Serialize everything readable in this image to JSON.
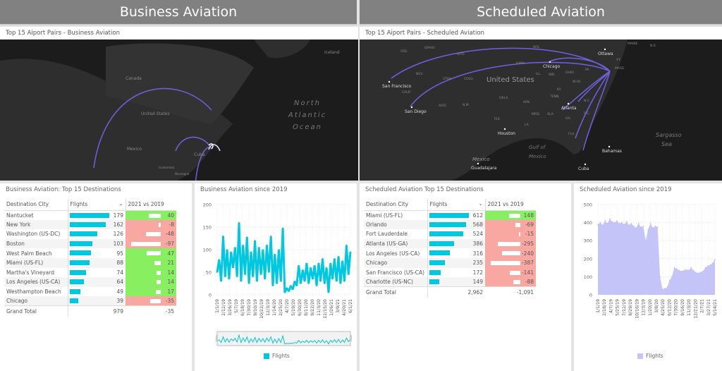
{
  "headers": {
    "business": "Business Aviation",
    "scheduled": "Scheduled Aviation"
  },
  "maps": {
    "business": {
      "title": "Top 15 Aiport Pairs - Business Aviation",
      "labels": [
        "Canada",
        "United States",
        "Mexico",
        "Cuba",
        "North",
        "Atlantic",
        "Ocean",
        "Iceland",
        "Guatemala",
        "Nicaragua"
      ]
    },
    "scheduled": {
      "title": "Top 15 Aiport Pairs - Scheduled Aviation",
      "cities": [
        "Chicago",
        "San Francisco",
        "San Diego",
        "Atlanta",
        "Houston",
        "Guadalajara",
        "Ottawa",
        "Bahamas",
        "Cuba"
      ],
      "states": [
        "ORE.",
        "IDAHO",
        "WYO.",
        "NEV.",
        "UTAH",
        "COLO.",
        "CALIF.",
        "ARIZ.",
        "N.M.",
        "OKLA.",
        "TEX.",
        "ARK.",
        "IOWA",
        "WIS.",
        "ILL.",
        "IND.",
        "OHIO",
        "PA.",
        "W.VA.",
        "KY.",
        "TENN.",
        "N.C.",
        "S.C.",
        "GA.",
        "ALA.",
        "MISS.",
        "LA.",
        "FLA.",
        "MASS.",
        "VT.",
        "MAINE",
        "N.S."
      ],
      "regions": [
        "United States",
        "Mexico",
        "Gulf of",
        "Mexico",
        "Sargasso",
        "Sea"
      ]
    },
    "arc_color": "#6a5acd"
  },
  "business_table": {
    "title": "Business Aviation: Top 15 Destinations",
    "columns": [
      "Destination City",
      "Flights",
      "2021 vs 2019"
    ],
    "rows": [
      {
        "city": "Nantucket",
        "flights": 179,
        "diff": 40
      },
      {
        "city": "New York",
        "flights": 162,
        "diff": -8
      },
      {
        "city": "Washington (US-DC)",
        "flights": 126,
        "diff": -48
      },
      {
        "city": "Boston",
        "flights": 103,
        "diff": -97
      },
      {
        "city": "West Palm Beach",
        "flights": 95,
        "diff": 47
      },
      {
        "city": "Miami (US-FL)",
        "flights": 88,
        "diff": 21
      },
      {
        "city": "Martha's Vineyard",
        "flights": 74,
        "diff": 14
      },
      {
        "city": "Los Angeles (US-CA)",
        "flights": 64,
        "diff": 14
      },
      {
        "city": "Westhampton Beach",
        "flights": 49,
        "diff": 17
      },
      {
        "city": "Chicago",
        "flights": 39,
        "diff": -35
      }
    ],
    "total": {
      "label": "Grand Total",
      "flights": "979",
      "diff": "-35"
    }
  },
  "scheduled_table": {
    "title": "Scheduled Aviation Top 15 Destinations",
    "columns": [
      "Destination City",
      "Flights",
      "2021 vs 2019"
    ],
    "rows": [
      {
        "city": "Miami (US-FL)",
        "flights": 612,
        "diff": 148
      },
      {
        "city": "Orlando",
        "flights": 568,
        "diff": -69
      },
      {
        "city": "Fort Lauderdale",
        "flights": 524,
        "diff": -15
      },
      {
        "city": "Atlanta (US-GA)",
        "flights": 386,
        "diff": -295
      },
      {
        "city": "Los Angeles (US-CA)",
        "flights": 316,
        "diff": -240
      },
      {
        "city": "Chicago",
        "flights": 235,
        "diff": -387
      },
      {
        "city": "San Francisco (US-CA)",
        "flights": 172,
        "diff": -141
      },
      {
        "city": "Charlotte (US-NC)",
        "flights": 149,
        "diff": -88
      }
    ],
    "total": {
      "label": "Grand Total",
      "flights": "2,962",
      "diff": "-1,091"
    }
  },
  "colors": {
    "positive": "#88f060",
    "negative": "#f8a8a0",
    "bar": "#00c8e0",
    "scheduled_area": "#c4c4f8"
  },
  "chart_data": [
    {
      "type": "line",
      "title": "Business Aviation since 2019",
      "ylim": [
        0,
        200
      ],
      "yticks": [
        0,
        50,
        100,
        150,
        200
      ],
      "grid": true,
      "legend": "bottom",
      "series": [
        {
          "name": "Flights",
          "color": "#00c8e0",
          "values": [
            50,
            78,
            30,
            130,
            40,
            100,
            35,
            95,
            60,
            105,
            40,
            160,
            30,
            110,
            45,
            128,
            25,
            95,
            40,
            120,
            30,
            105,
            45,
            100,
            35,
            110,
            50,
            130,
            20,
            90,
            25,
            100,
            30,
            148,
            5,
            15,
            8,
            20,
            12,
            30,
            20,
            65,
            25,
            55,
            30,
            70,
            25,
            60,
            35,
            65,
            20,
            70,
            30,
            80,
            25,
            60,
            5,
            70,
            35,
            80,
            30,
            85,
            25,
            75,
            30,
            110,
            45,
            95
          ]
        }
      ],
      "xticks": [
        "1/1/19",
        "2/12/19",
        "3/26/19",
        "5/7/19",
        "6/18/19",
        "7/30/19",
        "9/10/19",
        "10/22/19",
        "12/3/19",
        "1/14/20",
        "2/25/20",
        "4/7/20",
        "5/19/20",
        "6/30/20",
        "8/11/20",
        "9/22/20",
        "11/3/20",
        "12/15/20",
        "1/26/21",
        "3/9/21",
        "4/20/21",
        "6/1/21"
      ]
    },
    {
      "type": "area",
      "title": "Scheduled Aviation since 2019",
      "ylim": [
        0,
        500
      ],
      "yticks": [
        0,
        100,
        200,
        300,
        400,
        500
      ],
      "grid": true,
      "legend": "bottom",
      "series": [
        {
          "name": "Flights",
          "color": "#c4c4f8",
          "values": [
            390,
            400,
            385,
            410,
            395,
            420,
            405,
            400,
            410,
            395,
            400,
            390,
            405,
            385,
            395,
            380,
            370,
            395,
            375,
            380,
            300,
            360,
            395,
            370,
            380,
            375,
            100,
            30,
            35,
            40,
            80,
            100,
            150,
            145,
            135,
            130,
            135,
            140,
            135,
            150,
            135,
            125,
            120,
            125,
            130,
            150,
            160,
            165,
            175,
            195
          ]
        }
      ],
      "xticks": [
        "1/1/19",
        "2/18/19",
        "4/7/19",
        "5/25/19",
        "7/12/19",
        "8/29/19",
        "10/16/19",
        "12/3/19",
        "1/20/20",
        "3/8/20",
        "4/25/20",
        "6/12/20",
        "7/30/20",
        "9/16/20",
        "11/3/20",
        "12/21/20",
        "2/7/21",
        "3/27/21",
        "5/14/21"
      ]
    }
  ]
}
